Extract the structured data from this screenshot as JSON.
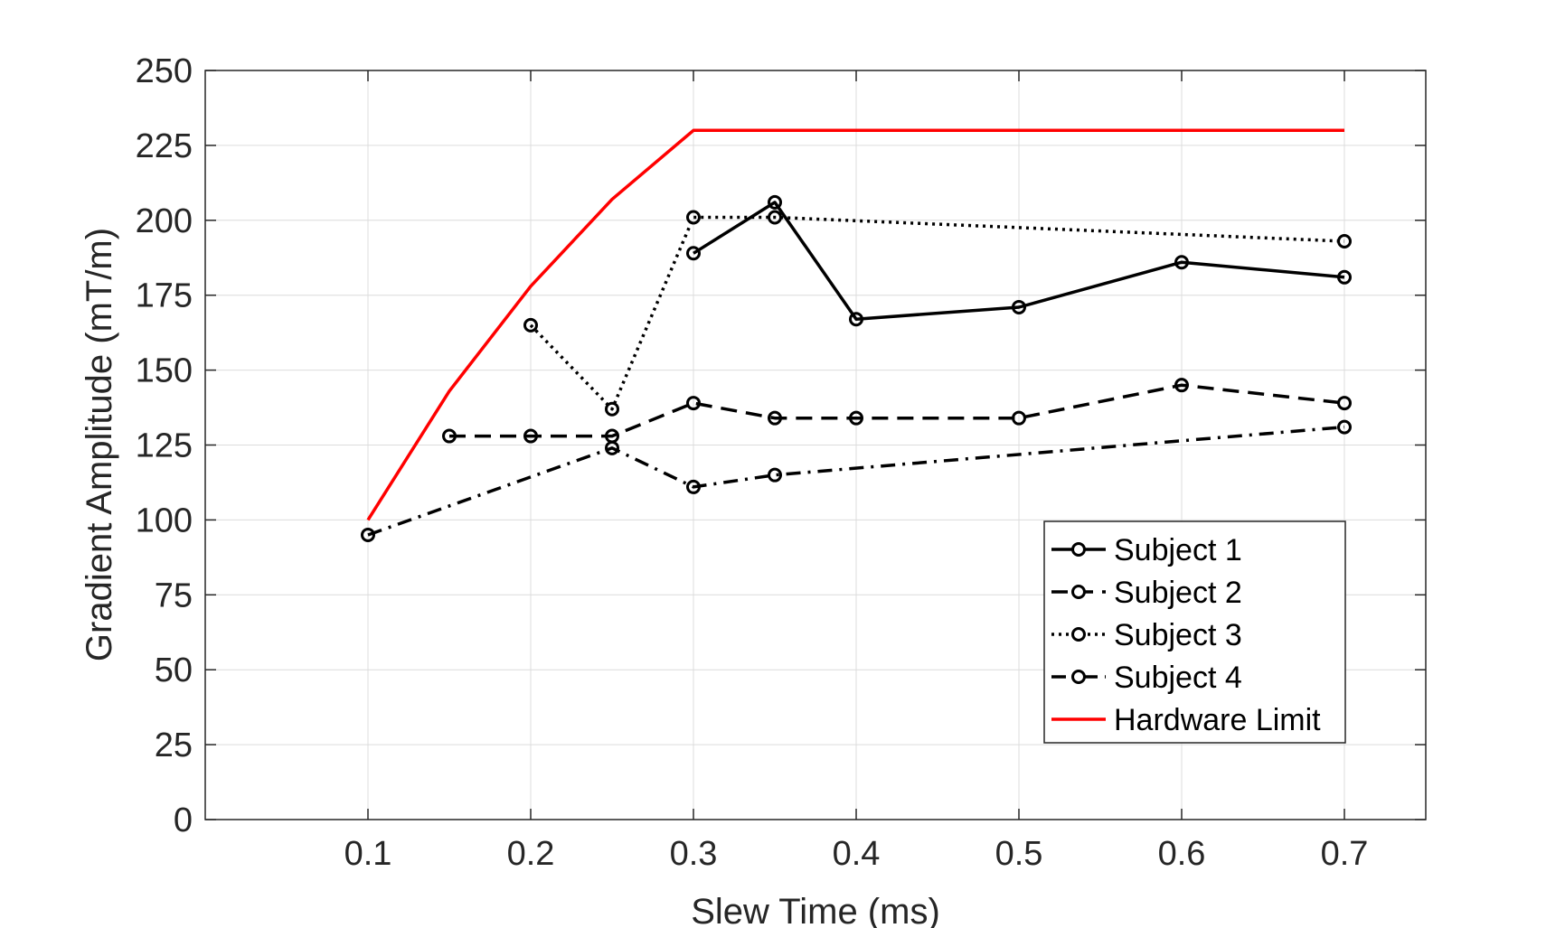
{
  "chart_data": {
    "type": "line",
    "xlabel": "Slew Time (ms)",
    "ylabel": "Gradient Amplitude (mT/m)",
    "xlim": [
      0,
      0.75
    ],
    "ylim": [
      0,
      250
    ],
    "x_ticks": [
      0.1,
      0.2,
      0.3,
      0.4,
      0.5,
      0.6,
      0.7
    ],
    "x_tick_labels": [
      "0.1",
      "0.2",
      "0.3",
      "0.4",
      "0.5",
      "0.6",
      "0.7"
    ],
    "y_ticks": [
      0,
      25,
      50,
      75,
      100,
      125,
      150,
      175,
      200,
      225,
      250
    ],
    "y_tick_labels": [
      "0",
      "25",
      "50",
      "75",
      "100",
      "125",
      "150",
      "175",
      "200",
      "225",
      "250"
    ],
    "grid": true,
    "legend_position": "lower-right",
    "series": [
      {
        "name": "Subject 1",
        "label": "Subject 1",
        "color": "#000000",
        "dash": "solid",
        "markers": true,
        "x": [
          0.3,
          0.35,
          0.4,
          0.5,
          0.6,
          0.7
        ],
        "y": [
          189,
          206,
          167,
          171,
          186,
          181
        ]
      },
      {
        "name": "Subject 2",
        "label": "Subject 2",
        "color": "#000000",
        "dash": "dashed",
        "markers": true,
        "x": [
          0.15,
          0.2,
          0.25,
          0.3,
          0.35,
          0.4,
          0.5,
          0.6,
          0.7
        ],
        "y": [
          128,
          128,
          128,
          139,
          134,
          134,
          134,
          145,
          139
        ]
      },
      {
        "name": "Subject 3",
        "label": "Subject 3",
        "color": "#000000",
        "dash": "dotted",
        "markers": true,
        "x": [
          0.2,
          0.25,
          0.3,
          0.35,
          0.7
        ],
        "y": [
          165,
          137,
          201,
          201,
          193
        ]
      },
      {
        "name": "Subject 4",
        "label": "Subject 4",
        "color": "#000000",
        "dash": "dashdot",
        "markers": true,
        "x": [
          0.1,
          0.25,
          0.3,
          0.35,
          0.7
        ],
        "y": [
          95,
          124,
          111,
          115,
          131
        ]
      },
      {
        "name": "Hardware Limit",
        "label": "Hardware Limit",
        "color": "#ff0000",
        "dash": "solid",
        "markers": false,
        "x": [
          0.1,
          0.15,
          0.2,
          0.25,
          0.3,
          0.7
        ],
        "y": [
          100,
          143,
          178,
          207,
          230,
          230
        ]
      }
    ]
  }
}
